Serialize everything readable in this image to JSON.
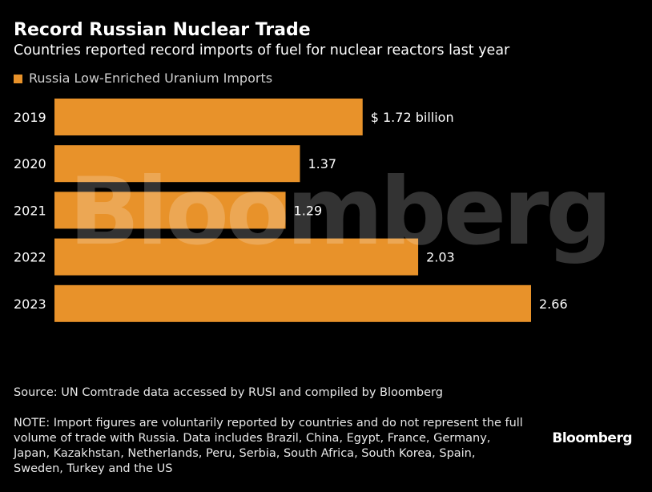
{
  "header": {
    "title": "Record Russian Nuclear Trade",
    "subtitle": "Countries reported record imports of fuel for nuclear reactors last year"
  },
  "colors": {
    "bar": "#E8922A",
    "background": "#000000",
    "text": "#FFFFFF"
  },
  "watermark": "Bloomberg",
  "footer": {
    "source": "Source: UN Comtrade data accessed by RUSI and compiled by Bloomberg",
    "note": "NOTE: Import figures are voluntarily reported by countries and do not represent the full volume of trade with Russia. Data includes Brazil, China, Egypt, France, Germany, Japan, Kazakhstan, Netherlands, Peru, Serbia, South Africa, South Korea, Spain, Sweden, Turkey and the US",
    "brand": "Bloomberg"
  },
  "chart_data": {
    "type": "bar",
    "orientation": "horizontal",
    "title": "Record Russian Nuclear Trade",
    "subtitle": "Countries reported record imports of fuel for nuclear reactors last year",
    "categories": [
      "2019",
      "2020",
      "2021",
      "2022",
      "2023"
    ],
    "series": [
      {
        "name": "Russia Low-Enriched Uranium Imports",
        "values": [
          1.72,
          1.37,
          1.29,
          2.03,
          2.66
        ]
      }
    ],
    "data_labels": [
      "$ 1.72 billion",
      "1.37",
      "1.29",
      "2.03",
      "2.66"
    ],
    "xlim": [
      0,
      2.66
    ],
    "grid": false,
    "legend": "top-left"
  }
}
